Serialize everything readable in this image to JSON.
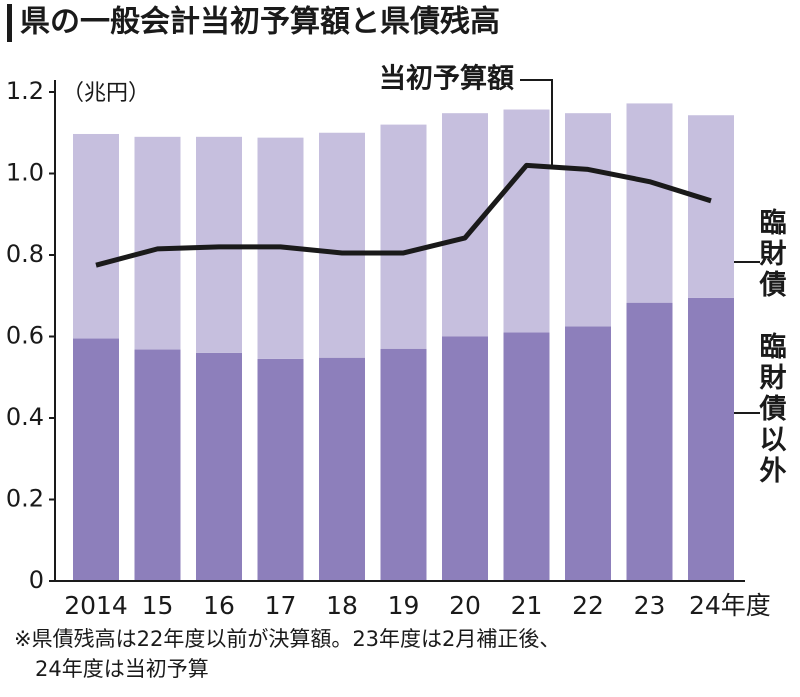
{
  "chart_data": {
    "type": "bar",
    "title": "県の一般会計当初予算額と県債残高",
    "unit_label": "（兆円）",
    "categories": [
      "2014",
      "15",
      "16",
      "17",
      "18",
      "19",
      "20",
      "21",
      "22",
      "23",
      "24年度"
    ],
    "stacked": true,
    "series": [
      {
        "name": "臨財債以外",
        "type": "bar",
        "color": "#8d7fbb",
        "values": [
          0.595,
          0.568,
          0.56,
          0.545,
          0.548,
          0.57,
          0.6,
          0.61,
          0.625,
          0.683,
          0.695
        ]
      },
      {
        "name": "臨財債",
        "type": "bar",
        "color": "#c6bfde",
        "values": [
          0.502,
          0.522,
          0.53,
          0.543,
          0.552,
          0.55,
          0.548,
          0.547,
          0.523,
          0.489,
          0.448
        ]
      },
      {
        "name": "当初予算額",
        "type": "line",
        "color": "#1a1a1a",
        "values": [
          0.775,
          0.815,
          0.82,
          0.82,
          0.805,
          0.805,
          0.842,
          1.02,
          1.01,
          0.98,
          0.933
        ]
      }
    ],
    "ylim": [
      0,
      1.2
    ],
    "yticks": [
      0,
      {
        "value": 0.2,
        "label": "0.2"
      },
      {
        "value": 0.4,
        "label": "0.4"
      },
      {
        "value": 0.6,
        "label": "0.6"
      },
      {
        "value": 0.8,
        "label": "0.8"
      },
      {
        "value": 1,
        "label": "1.0"
      },
      {
        "value": 1.2,
        "label": "1.2"
      }
    ],
    "grid": false,
    "notes": [
      "※県債残高は22年度以前が決算額。23年度は2月補正後、",
      "　24年度は当初予算"
    ]
  }
}
